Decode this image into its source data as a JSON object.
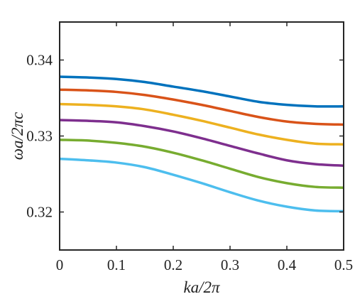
{
  "chart_data": {
    "type": "line",
    "xlabel": "ka/2π",
    "ylabel": "ωa/2πc",
    "xlim": [
      0,
      0.5
    ],
    "ylim": [
      0.315,
      0.345
    ],
    "xticks": [
      0,
      0.1,
      0.2,
      0.3,
      0.4,
      0.5
    ],
    "xtick_labels": [
      "0",
      "0.1",
      "0.2",
      "0.3",
      "0.4",
      "0.5"
    ],
    "yticks": [
      0.32,
      0.33,
      0.34
    ],
    "ytick_labels": [
      "0.32",
      "0.33",
      "0.34"
    ],
    "grid": false,
    "legend": "none",
    "x": [
      0,
      0.05,
      0.1,
      0.15,
      0.2,
      0.25,
      0.3,
      0.35,
      0.4,
      0.45,
      0.5
    ],
    "series": [
      {
        "color": "#0072BD",
        "values": [
          0.3378,
          0.3377,
          0.3375,
          0.3371,
          0.3365,
          0.3359,
          0.3352,
          0.3345,
          0.3341,
          0.3339,
          0.3339
        ]
      },
      {
        "color": "#D95319",
        "values": [
          0.3361,
          0.336,
          0.3358,
          0.3354,
          0.3348,
          0.3341,
          0.3333,
          0.3325,
          0.3319,
          0.3316,
          0.3315
        ]
      },
      {
        "color": "#EDB120",
        "values": [
          0.3342,
          0.3341,
          0.3339,
          0.3335,
          0.3328,
          0.332,
          0.3311,
          0.3302,
          0.3295,
          0.329,
          0.3289
        ]
      },
      {
        "color": "#7E2F8E",
        "values": [
          0.3321,
          0.332,
          0.3318,
          0.3313,
          0.3306,
          0.3297,
          0.3287,
          0.3277,
          0.3268,
          0.3263,
          0.3261
        ]
      },
      {
        "color": "#77AC30",
        "values": [
          0.3295,
          0.3294,
          0.3291,
          0.3286,
          0.3278,
          0.3268,
          0.3257,
          0.3246,
          0.3238,
          0.3233,
          0.3232
        ]
      },
      {
        "color": "#4DBEEE",
        "values": [
          0.327,
          0.3268,
          0.3265,
          0.3259,
          0.3249,
          0.3238,
          0.3226,
          0.3215,
          0.3207,
          0.3202,
          0.3201
        ]
      }
    ]
  }
}
